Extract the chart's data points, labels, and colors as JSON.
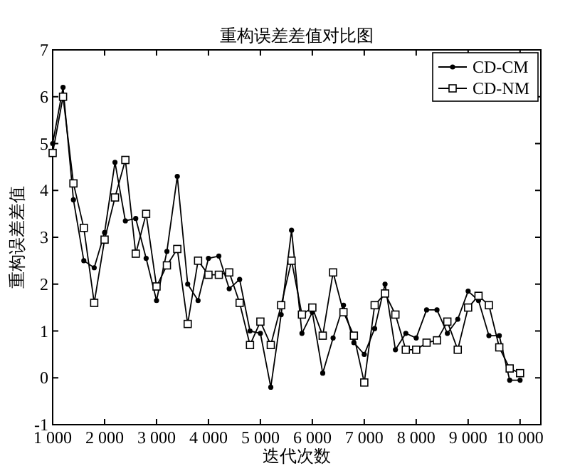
{
  "chart_data": {
    "type": "line",
    "title": "重构误差差值对比图",
    "xlabel": "迭代次数",
    "ylabel": "重构误差差值",
    "x": [
      1000,
      1200,
      1400,
      1600,
      1800,
      2000,
      2200,
      2400,
      2600,
      2800,
      3000,
      3200,
      3400,
      3600,
      3800,
      4000,
      4200,
      4400,
      4600,
      4800,
      5000,
      5200,
      5400,
      5600,
      5800,
      6000,
      6200,
      6400,
      6600,
      6800,
      7000,
      7200,
      7400,
      7600,
      7800,
      8000,
      8200,
      8400,
      8600,
      8800,
      9000,
      9200,
      9400,
      9600,
      9800,
      10000
    ],
    "series": [
      {
        "name": "CD-CM",
        "color": "#000000",
        "marker": "circle",
        "values": [
          5.0,
          6.2,
          3.8,
          2.5,
          2.35,
          3.1,
          4.6,
          3.35,
          3.4,
          2.55,
          1.65,
          2.7,
          4.3,
          2.0,
          1.65,
          2.55,
          2.6,
          1.9,
          2.1,
          1.0,
          0.95,
          -0.2,
          1.35,
          3.15,
          0.95,
          1.4,
          0.1,
          0.85,
          1.55,
          0.75,
          0.5,
          1.05,
          2.0,
          0.6,
          0.95,
          0.85,
          1.45,
          1.45,
          0.95,
          1.25,
          1.85,
          1.65,
          0.9,
          0.9,
          -0.05,
          -0.05
        ]
      },
      {
        "name": "CD-NM",
        "color": "#000000",
        "marker": "square",
        "values": [
          4.8,
          6.0,
          4.15,
          3.2,
          1.6,
          2.95,
          3.85,
          4.65,
          2.65,
          3.5,
          1.95,
          2.4,
          2.75,
          1.15,
          2.5,
          2.2,
          2.2,
          2.25,
          1.6,
          0.7,
          1.2,
          0.7,
          1.55,
          2.5,
          1.35,
          1.5,
          0.9,
          2.25,
          1.4,
          0.9,
          -0.1,
          1.55,
          1.8,
          1.35,
          0.6,
          0.6,
          0.75,
          0.8,
          1.2,
          0.6,
          1.5,
          1.75,
          1.55,
          0.65,
          0.2,
          0.1
        ]
      }
    ],
    "xlim": [
      1000,
      10400
    ],
    "xticks": [
      {
        "value": 1000,
        "label": "1 000"
      },
      {
        "value": 2000,
        "label": "2 000"
      },
      {
        "value": 3000,
        "label": "3 000"
      },
      {
        "value": 4000,
        "label": "4 000"
      },
      {
        "value": 5000,
        "label": "5 000"
      },
      {
        "value": 6000,
        "label": "6 000"
      },
      {
        "value": 7000,
        "label": "7 000"
      },
      {
        "value": 8000,
        "label": "8 000"
      },
      {
        "value": 9000,
        "label": "9 000"
      },
      {
        "value": 10000,
        "label": "10 000"
      }
    ],
    "ylim": [
      -1,
      7
    ],
    "yticks": [
      -1,
      0,
      1,
      2,
      3,
      4,
      5,
      6,
      7
    ],
    "grid": false,
    "legend": "top right",
    "line_style": "solid"
  }
}
